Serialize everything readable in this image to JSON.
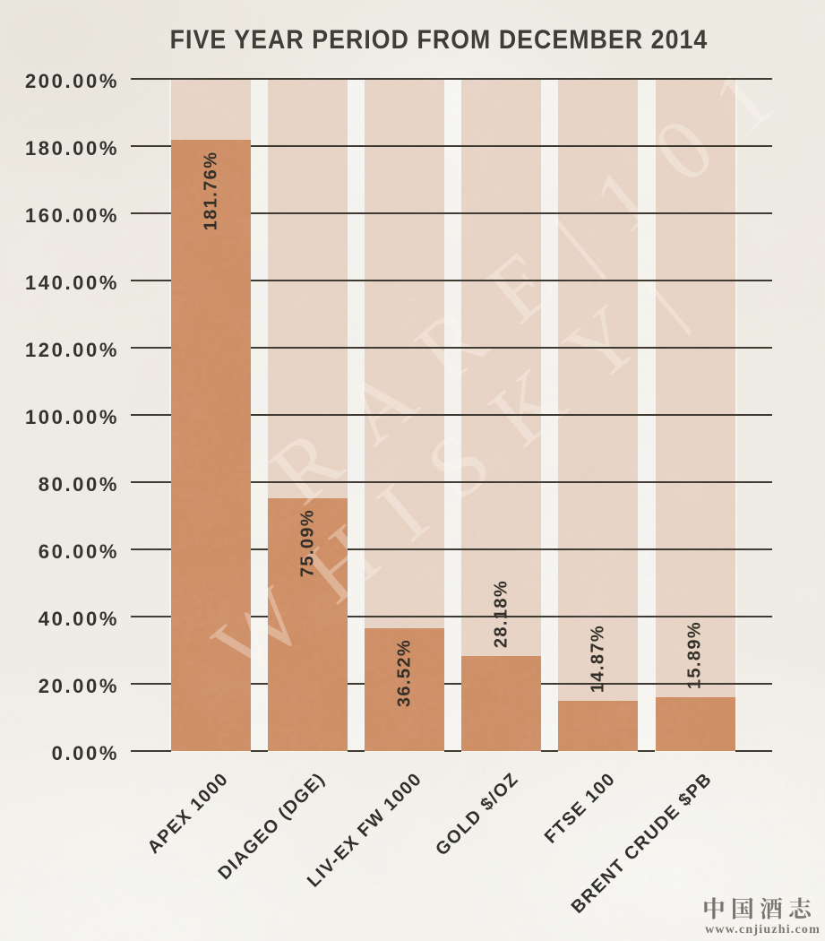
{
  "chart_data": {
    "type": "bar",
    "title": "FIVE YEAR PERIOD FROM DECEMBER 2014",
    "categories": [
      "APEX 1000",
      "DIAGEO (DGE)",
      "LIV-EX FW 1000",
      "GOLD $/OZ",
      "FTSE 100",
      "BRENT CRUDE $PB"
    ],
    "values": [
      181.76,
      75.09,
      36.52,
      28.18,
      14.87,
      15.89
    ],
    "value_labels": [
      "181.76%",
      "75.09%",
      "36.52%",
      "28.18%",
      "14.87%",
      "15.89%"
    ],
    "xlabel": "",
    "ylabel": "",
    "ylim": [
      0,
      200
    ],
    "y_ticks": [
      "200.00%",
      "180.00%",
      "160.00%",
      "140.00%",
      "120.00%",
      "100.00%",
      "80.00%",
      "60.00%",
      "40.00%",
      "20.00%",
      "0.00%"
    ],
    "grid": true,
    "legend": false
  },
  "watermark": {
    "text": "RARE WHISKY 101",
    "line1": "RARE|101",
    "line2": "WHISKY|"
  },
  "footer": {
    "site_name": "中国酒志网",
    "site_url": "www.cnjiuzhi.com"
  },
  "colors": {
    "paper": "#EDEAE3",
    "column_background": "#E6D2C3",
    "bar": "#CD8C63",
    "gridline": "#3A362E",
    "text": "#2F2D29",
    "brand_watermark": "rgba(255,250,242,0.32)",
    "site_watermark": "rgba(82,79,73,0.80)"
  }
}
